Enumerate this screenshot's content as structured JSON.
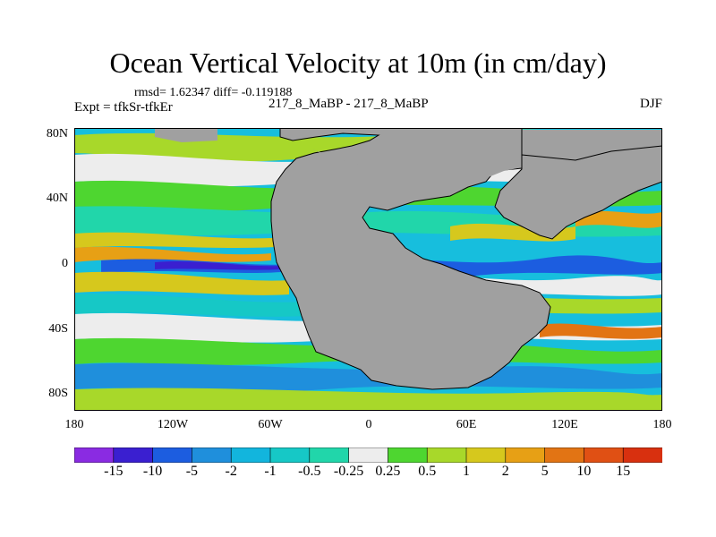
{
  "title": "Ocean Vertical Velocity at 10m (in cm/day)",
  "stats": "rmsd= 1.62347 diff= -0.119188",
  "expt": "Expt = tfkSr-tfkEr",
  "runs": "217_8_MaBP - 217_8_MaBP",
  "season": "DJF",
  "lat_ticks": [
    "80N",
    "40N",
    "0",
    "40S",
    "80S"
  ],
  "lon_ticks": [
    "180",
    "120W",
    "60W",
    "0",
    "60E",
    "120E",
    "180"
  ],
  "colorbar": {
    "labels": [
      "-15",
      "-10",
      "-5",
      "-2",
      "-1",
      "-0.5",
      "-0.25",
      "0.25",
      "0.5",
      "1",
      "2",
      "5",
      "10",
      "15"
    ],
    "colors": [
      "#8a2be2",
      "#3a1fd0",
      "#1c5de0",
      "#1f8fdc",
      "#12b5dd",
      "#16c8c6",
      "#21d6aa",
      "#ededed",
      "#4ed630",
      "#a8d82a",
      "#d6c81d",
      "#e7a015",
      "#e27414",
      "#e05014",
      "#d8300f"
    ]
  },
  "map": {
    "land_color": "#a0a0a0"
  }
}
